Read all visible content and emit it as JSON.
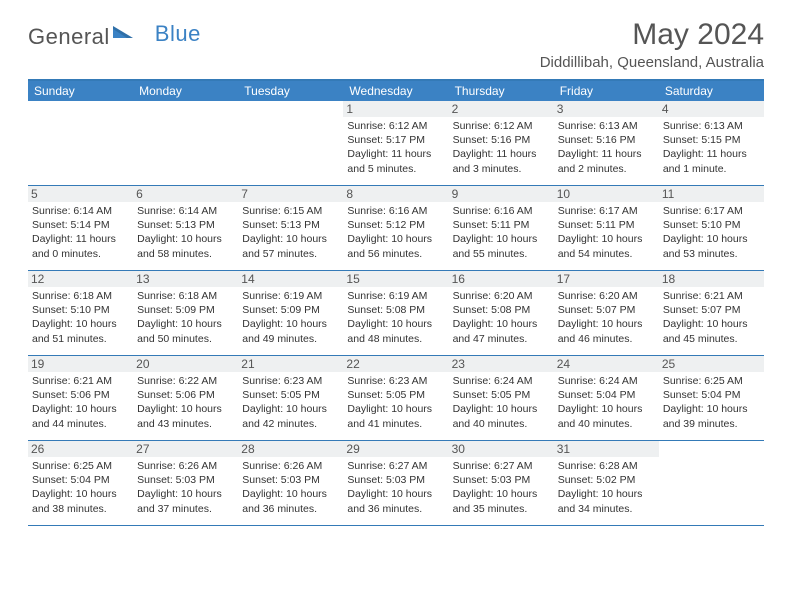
{
  "logo": {
    "part1": "General",
    "part2": "Blue"
  },
  "title": "May 2024",
  "location": "Diddillibah, Queensland, Australia",
  "colors": {
    "accent": "#3b82c4",
    "accent_border": "#347ab7",
    "daynum_bg": "#eef0f1",
    "text": "#555"
  },
  "dayHeaders": [
    "Sunday",
    "Monday",
    "Tuesday",
    "Wednesday",
    "Thursday",
    "Friday",
    "Saturday"
  ],
  "weeks": [
    [
      {
        "n": "",
        "sr": "",
        "ss": "",
        "dl1": "",
        "dl2": ""
      },
      {
        "n": "",
        "sr": "",
        "ss": "",
        "dl1": "",
        "dl2": ""
      },
      {
        "n": "",
        "sr": "",
        "ss": "",
        "dl1": "",
        "dl2": ""
      },
      {
        "n": "1",
        "sr": "Sunrise: 6:12 AM",
        "ss": "Sunset: 5:17 PM",
        "dl1": "Daylight: 11 hours",
        "dl2": "and 5 minutes."
      },
      {
        "n": "2",
        "sr": "Sunrise: 6:12 AM",
        "ss": "Sunset: 5:16 PM",
        "dl1": "Daylight: 11 hours",
        "dl2": "and 3 minutes."
      },
      {
        "n": "3",
        "sr": "Sunrise: 6:13 AM",
        "ss": "Sunset: 5:16 PM",
        "dl1": "Daylight: 11 hours",
        "dl2": "and 2 minutes."
      },
      {
        "n": "4",
        "sr": "Sunrise: 6:13 AM",
        "ss": "Sunset: 5:15 PM",
        "dl1": "Daylight: 11 hours",
        "dl2": "and 1 minute."
      }
    ],
    [
      {
        "n": "5",
        "sr": "Sunrise: 6:14 AM",
        "ss": "Sunset: 5:14 PM",
        "dl1": "Daylight: 11 hours",
        "dl2": "and 0 minutes."
      },
      {
        "n": "6",
        "sr": "Sunrise: 6:14 AM",
        "ss": "Sunset: 5:13 PM",
        "dl1": "Daylight: 10 hours",
        "dl2": "and 58 minutes."
      },
      {
        "n": "7",
        "sr": "Sunrise: 6:15 AM",
        "ss": "Sunset: 5:13 PM",
        "dl1": "Daylight: 10 hours",
        "dl2": "and 57 minutes."
      },
      {
        "n": "8",
        "sr": "Sunrise: 6:16 AM",
        "ss": "Sunset: 5:12 PM",
        "dl1": "Daylight: 10 hours",
        "dl2": "and 56 minutes."
      },
      {
        "n": "9",
        "sr": "Sunrise: 6:16 AM",
        "ss": "Sunset: 5:11 PM",
        "dl1": "Daylight: 10 hours",
        "dl2": "and 55 minutes."
      },
      {
        "n": "10",
        "sr": "Sunrise: 6:17 AM",
        "ss": "Sunset: 5:11 PM",
        "dl1": "Daylight: 10 hours",
        "dl2": "and 54 minutes."
      },
      {
        "n": "11",
        "sr": "Sunrise: 6:17 AM",
        "ss": "Sunset: 5:10 PM",
        "dl1": "Daylight: 10 hours",
        "dl2": "and 53 minutes."
      }
    ],
    [
      {
        "n": "12",
        "sr": "Sunrise: 6:18 AM",
        "ss": "Sunset: 5:10 PM",
        "dl1": "Daylight: 10 hours",
        "dl2": "and 51 minutes."
      },
      {
        "n": "13",
        "sr": "Sunrise: 6:18 AM",
        "ss": "Sunset: 5:09 PM",
        "dl1": "Daylight: 10 hours",
        "dl2": "and 50 minutes."
      },
      {
        "n": "14",
        "sr": "Sunrise: 6:19 AM",
        "ss": "Sunset: 5:09 PM",
        "dl1": "Daylight: 10 hours",
        "dl2": "and 49 minutes."
      },
      {
        "n": "15",
        "sr": "Sunrise: 6:19 AM",
        "ss": "Sunset: 5:08 PM",
        "dl1": "Daylight: 10 hours",
        "dl2": "and 48 minutes."
      },
      {
        "n": "16",
        "sr": "Sunrise: 6:20 AM",
        "ss": "Sunset: 5:08 PM",
        "dl1": "Daylight: 10 hours",
        "dl2": "and 47 minutes."
      },
      {
        "n": "17",
        "sr": "Sunrise: 6:20 AM",
        "ss": "Sunset: 5:07 PM",
        "dl1": "Daylight: 10 hours",
        "dl2": "and 46 minutes."
      },
      {
        "n": "18",
        "sr": "Sunrise: 6:21 AM",
        "ss": "Sunset: 5:07 PM",
        "dl1": "Daylight: 10 hours",
        "dl2": "and 45 minutes."
      }
    ],
    [
      {
        "n": "19",
        "sr": "Sunrise: 6:21 AM",
        "ss": "Sunset: 5:06 PM",
        "dl1": "Daylight: 10 hours",
        "dl2": "and 44 minutes."
      },
      {
        "n": "20",
        "sr": "Sunrise: 6:22 AM",
        "ss": "Sunset: 5:06 PM",
        "dl1": "Daylight: 10 hours",
        "dl2": "and 43 minutes."
      },
      {
        "n": "21",
        "sr": "Sunrise: 6:23 AM",
        "ss": "Sunset: 5:05 PM",
        "dl1": "Daylight: 10 hours",
        "dl2": "and 42 minutes."
      },
      {
        "n": "22",
        "sr": "Sunrise: 6:23 AM",
        "ss": "Sunset: 5:05 PM",
        "dl1": "Daylight: 10 hours",
        "dl2": "and 41 minutes."
      },
      {
        "n": "23",
        "sr": "Sunrise: 6:24 AM",
        "ss": "Sunset: 5:05 PM",
        "dl1": "Daylight: 10 hours",
        "dl2": "and 40 minutes."
      },
      {
        "n": "24",
        "sr": "Sunrise: 6:24 AM",
        "ss": "Sunset: 5:04 PM",
        "dl1": "Daylight: 10 hours",
        "dl2": "and 40 minutes."
      },
      {
        "n": "25",
        "sr": "Sunrise: 6:25 AM",
        "ss": "Sunset: 5:04 PM",
        "dl1": "Daylight: 10 hours",
        "dl2": "and 39 minutes."
      }
    ],
    [
      {
        "n": "26",
        "sr": "Sunrise: 6:25 AM",
        "ss": "Sunset: 5:04 PM",
        "dl1": "Daylight: 10 hours",
        "dl2": "and 38 minutes."
      },
      {
        "n": "27",
        "sr": "Sunrise: 6:26 AM",
        "ss": "Sunset: 5:03 PM",
        "dl1": "Daylight: 10 hours",
        "dl2": "and 37 minutes."
      },
      {
        "n": "28",
        "sr": "Sunrise: 6:26 AM",
        "ss": "Sunset: 5:03 PM",
        "dl1": "Daylight: 10 hours",
        "dl2": "and 36 minutes."
      },
      {
        "n": "29",
        "sr": "Sunrise: 6:27 AM",
        "ss": "Sunset: 5:03 PM",
        "dl1": "Daylight: 10 hours",
        "dl2": "and 36 minutes."
      },
      {
        "n": "30",
        "sr": "Sunrise: 6:27 AM",
        "ss": "Sunset: 5:03 PM",
        "dl1": "Daylight: 10 hours",
        "dl2": "and 35 minutes."
      },
      {
        "n": "31",
        "sr": "Sunrise: 6:28 AM",
        "ss": "Sunset: 5:02 PM",
        "dl1": "Daylight: 10 hours",
        "dl2": "and 34 minutes."
      },
      {
        "n": "",
        "sr": "",
        "ss": "",
        "dl1": "",
        "dl2": ""
      }
    ]
  ]
}
